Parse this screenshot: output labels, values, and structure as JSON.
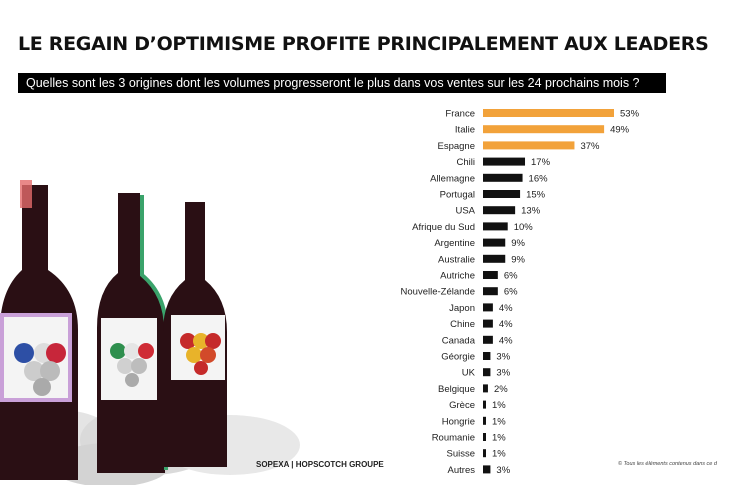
{
  "title": "LE REGAIN D’OPTIMISME PROFITE PRINCIPALEMENT AUX LEADERS",
  "question": "Quelles sont les 3 origines dont les volumes progresseront le plus dans vos ventes sur les 24 prochains mois ?",
  "source": "SOPEXA | HOPSCOTCH GROUPE",
  "footnote": "© Tous les éléments contenus dans ce d",
  "colors": {
    "highlight": "#f2a23a",
    "default": "#111111"
  },
  "chart_data": {
    "type": "bar",
    "orientation": "horizontal",
    "categories": [
      "France",
      "Italie",
      "Espagne",
      "Chili",
      "Allemagne",
      "Portugal",
      "USA",
      "Afrique du Sud",
      "Argentine",
      "Australie",
      "Autriche",
      "Nouvelle-Zélande",
      "Japon",
      "Chine",
      "Canada",
      "Géorgie",
      "UK",
      "Belgique",
      "Grèce",
      "Hongrie",
      "Roumanie",
      "Suisse",
      "Autres"
    ],
    "values": [
      53,
      49,
      37,
      17,
      16,
      15,
      13,
      10,
      9,
      9,
      6,
      6,
      4,
      4,
      4,
      3,
      3,
      2,
      1,
      1,
      1,
      1,
      3
    ],
    "value_labels": [
      "53%",
      "49%",
      "37%",
      "17%",
      "16%",
      "15%",
      "13%",
      "10%",
      "9%",
      "9%",
      "6%",
      "6%",
      "4%",
      "4%",
      "4%",
      "3%",
      "3%",
      "2%",
      "1%",
      "1%",
      "1%",
      "1%",
      "3%"
    ],
    "highlighted": [
      "France",
      "Italie",
      "Espagne"
    ],
    "xlim": [
      0,
      53
    ],
    "grid": false,
    "legend": "none"
  }
}
